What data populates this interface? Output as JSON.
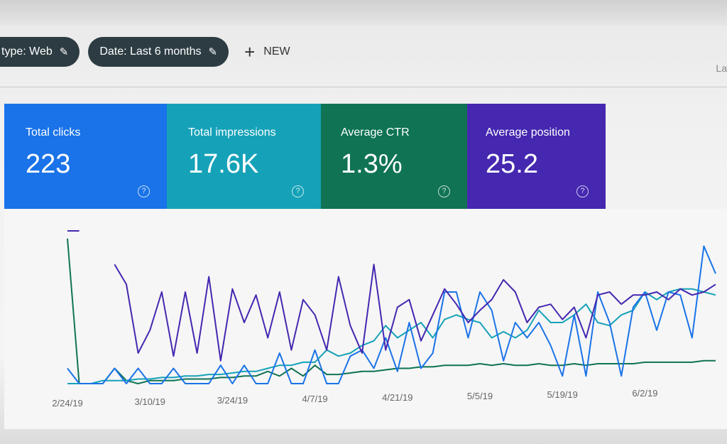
{
  "filters": {
    "chips": [
      {
        "label": "type: Web",
        "icon": "pencil-icon"
      },
      {
        "label": "Date: Last 6 months",
        "icon": "pencil-icon"
      }
    ],
    "new_label": "NEW",
    "new_icon": "plus-icon",
    "right_partial": "La"
  },
  "metrics": [
    {
      "label": "Total clicks",
      "value": "223",
      "color": "#1a73e8",
      "icon": "help-icon"
    },
    {
      "label": "Total impressions",
      "value": "17.6K",
      "color": "#15a2b8",
      "icon": "help-icon"
    },
    {
      "label": "Average CTR",
      "value": "1.3%",
      "color": "#0f7354",
      "icon": "help-icon"
    },
    {
      "label": "Average position",
      "value": "25.2",
      "color": "#4527b0",
      "icon": "help-icon"
    }
  ],
  "chart_data": {
    "type": "line",
    "x_tick_labels": [
      "2/24/19",
      "3/10/19",
      "3/24/19",
      "4/7/19",
      "4/21/19",
      "5/5/19",
      "5/19/19",
      "6/2/19"
    ],
    "x_tick_index": [
      0,
      7,
      14,
      21,
      28,
      35,
      42,
      49
    ],
    "grid": false,
    "series": [
      {
        "metric": "Average position",
        "color": "#4527b0",
        "values": [
          100,
          100,
          null,
          null,
          78,
          65,
          20,
          35,
          60,
          18,
          60,
          20,
          70,
          15,
          62,
          40,
          58,
          30,
          60,
          22,
          55,
          45,
          22,
          70,
          38,
          20,
          78,
          22,
          50,
          55,
          28,
          45,
          62,
          52,
          40,
          48,
          55,
          68,
          60,
          40,
          50,
          52,
          42,
          50,
          30,
          58,
          60,
          52,
          58,
          58,
          60,
          55,
          62,
          58,
          60,
          65
        ]
      },
      {
        "metric": "Total clicks",
        "color": "#1a73e8",
        "values": [
          10,
          0,
          0,
          0,
          10,
          0,
          10,
          0,
          0,
          10,
          0,
          0,
          0,
          12,
          0,
          12,
          0,
          0,
          20,
          0,
          0,
          22,
          0,
          0,
          18,
          22,
          10,
          30,
          8,
          40,
          10,
          20,
          60,
          60,
          30,
          60,
          48,
          15,
          40,
          30,
          40,
          25,
          5,
          45,
          5,
          60,
          40,
          5,
          50,
          60,
          35,
          60,
          58,
          30,
          90,
          72
        ]
      },
      {
        "metric": "Total impressions",
        "color": "#15a2b8",
        "values": [
          0,
          0,
          0,
          2,
          2,
          2,
          3,
          3,
          4,
          4,
          5,
          5,
          6,
          6,
          7,
          8,
          8,
          10,
          12,
          12,
          14,
          14,
          22,
          18,
          20,
          25,
          28,
          38,
          30,
          35,
          40,
          30,
          42,
          45,
          42,
          40,
          30,
          34,
          30,
          35,
          48,
          40,
          40,
          45,
          52,
          40,
          38,
          45,
          48,
          60,
          55,
          60,
          62,
          62,
          60,
          58
        ]
      },
      {
        "metric": "Average CTR",
        "color": "#0f7354",
        "values": [
          95,
          0,
          0,
          0,
          10,
          2,
          0,
          2,
          2,
          2,
          3,
          3,
          3,
          4,
          4,
          5,
          5,
          8,
          5,
          10,
          5,
          12,
          6,
          6,
          7,
          8,
          8,
          9,
          10,
          10,
          11,
          11,
          12,
          12,
          12,
          13,
          12,
          13,
          12,
          12,
          13,
          12,
          12,
          13,
          12,
          13,
          13,
          13,
          13,
          14,
          14,
          14,
          14,
          14,
          15,
          15
        ]
      }
    ]
  }
}
